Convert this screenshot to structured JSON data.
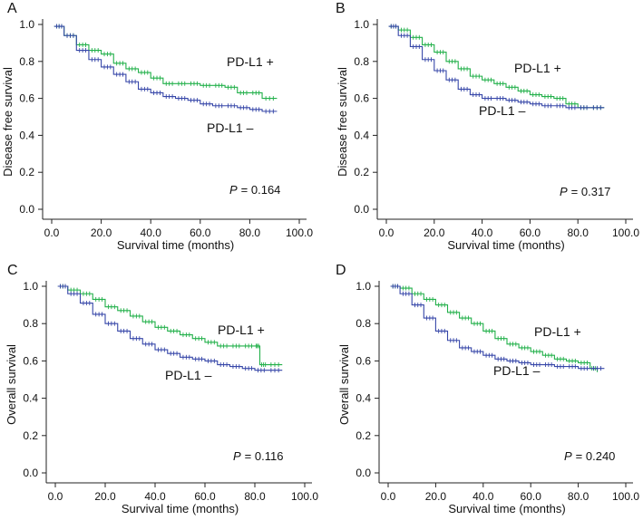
{
  "chart_data": [
    {
      "type": "line",
      "panel_letter": "A",
      "xlabel": "Survival time (months)",
      "ylabel": "Disease free survival",
      "xlim": [
        0,
        100
      ],
      "ylim": [
        0,
        1
      ],
      "xticks": [
        "0.0",
        "20.0",
        "40.0",
        "60.0",
        "80.0",
        "100.0"
      ],
      "yticks": [
        "0.0",
        "0.2",
        "0.4",
        "0.6",
        "0.8",
        "1.0"
      ],
      "p_label": "P",
      "p_value": "= 0.164",
      "series": [
        {
          "name": "PD-L1 +",
          "color": "#22b04a",
          "x": [
            1,
            5,
            10,
            15,
            20,
            25,
            30,
            35,
            40,
            45,
            50,
            55,
            60,
            65,
            70,
            75,
            80,
            85,
            91
          ],
          "y": [
            0.99,
            0.94,
            0.89,
            0.86,
            0.84,
            0.79,
            0.76,
            0.74,
            0.71,
            0.68,
            0.68,
            0.68,
            0.67,
            0.67,
            0.66,
            0.63,
            0.63,
            0.6,
            0.6
          ]
        },
        {
          "name": "PD-L1 –",
          "color": "#3646a8",
          "x": [
            1,
            5,
            10,
            15,
            20,
            25,
            30,
            35,
            40,
            45,
            50,
            55,
            60,
            65,
            70,
            75,
            80,
            85,
            91
          ],
          "y": [
            0.99,
            0.94,
            0.86,
            0.81,
            0.77,
            0.73,
            0.69,
            0.65,
            0.63,
            0.61,
            0.6,
            0.59,
            0.57,
            0.56,
            0.56,
            0.55,
            0.54,
            0.53,
            0.53
          ]
        }
      ]
    },
    {
      "type": "line",
      "panel_letter": "B",
      "xlabel": "Survival time (months)",
      "ylabel": "Disease free survival",
      "xlim": [
        0,
        100
      ],
      "ylim": [
        0,
        1
      ],
      "xticks": [
        "0.0",
        "20.0",
        "40.0",
        "60.0",
        "80.0",
        "100.0"
      ],
      "yticks": [
        "0.0",
        "0.2",
        "0.4",
        "0.6",
        "0.8",
        "1.0"
      ],
      "p_label": "P",
      "p_value": "= 0.317",
      "series": [
        {
          "name": "PD-L1 +",
          "color": "#22b04a",
          "x": [
            1,
            5,
            10,
            15,
            20,
            25,
            30,
            35,
            40,
            45,
            50,
            55,
            60,
            65,
            70,
            75,
            80,
            85,
            91
          ],
          "y": [
            0.99,
            0.97,
            0.93,
            0.89,
            0.85,
            0.8,
            0.76,
            0.72,
            0.7,
            0.68,
            0.66,
            0.64,
            0.62,
            0.61,
            0.6,
            0.57,
            0.55,
            0.55,
            0.55
          ]
        },
        {
          "name": "PD-L1 –",
          "color": "#3646a8",
          "x": [
            1,
            5,
            10,
            15,
            20,
            25,
            30,
            35,
            40,
            45,
            50,
            55,
            60,
            65,
            70,
            75,
            80,
            85,
            91
          ],
          "y": [
            0.99,
            0.94,
            0.88,
            0.81,
            0.75,
            0.7,
            0.65,
            0.62,
            0.6,
            0.6,
            0.59,
            0.58,
            0.57,
            0.56,
            0.56,
            0.55,
            0.55,
            0.55,
            0.55
          ]
        }
      ]
    },
    {
      "type": "line",
      "panel_letter": "C",
      "xlabel": "Survival time (months)",
      "ylabel": "Overall survival",
      "xlim": [
        0,
        100
      ],
      "ylim": [
        0,
        1
      ],
      "xticks": [
        "0.0",
        "20.0",
        "40.0",
        "60.0",
        "80.0",
        "100.0"
      ],
      "yticks": [
        "0.0",
        "0.2",
        "0.4",
        "0.6",
        "0.8",
        "1.0"
      ],
      "p_label": "P",
      "p_value": "= 0.116",
      "series": [
        {
          "name": "PD-L1 +",
          "color": "#22b04a",
          "x": [
            1,
            5,
            10,
            15,
            20,
            25,
            30,
            35,
            40,
            45,
            50,
            55,
            60,
            65,
            70,
            75,
            80,
            82,
            85,
            91
          ],
          "y": [
            1.0,
            0.98,
            0.96,
            0.93,
            0.89,
            0.87,
            0.84,
            0.81,
            0.78,
            0.76,
            0.74,
            0.72,
            0.7,
            0.68,
            0.68,
            0.68,
            0.68,
            0.58,
            0.58,
            0.58
          ]
        },
        {
          "name": "PD-L1 –",
          "color": "#3646a8",
          "x": [
            1,
            5,
            10,
            15,
            20,
            25,
            30,
            35,
            40,
            45,
            50,
            55,
            60,
            65,
            70,
            75,
            80,
            85,
            91
          ],
          "y": [
            1.0,
            0.96,
            0.91,
            0.85,
            0.8,
            0.76,
            0.72,
            0.69,
            0.66,
            0.64,
            0.62,
            0.61,
            0.6,
            0.58,
            0.57,
            0.56,
            0.55,
            0.55,
            0.55
          ]
        }
      ]
    },
    {
      "type": "line",
      "panel_letter": "D",
      "xlabel": "Survival time (months)",
      "ylabel": "Overall survival",
      "xlim": [
        0,
        100
      ],
      "ylim": [
        0,
        1
      ],
      "xticks": [
        "0.0",
        "20.0",
        "40.0",
        "60.0",
        "80.0",
        "100.0"
      ],
      "yticks": [
        "0.0",
        "0.2",
        "0.4",
        "0.6",
        "0.8",
        "1.0"
      ],
      "p_label": "P",
      "p_value": "= 0.240",
      "series": [
        {
          "name": "PD-L1 +",
          "color": "#22b04a",
          "x": [
            1,
            5,
            10,
            15,
            20,
            25,
            30,
            35,
            40,
            45,
            50,
            55,
            60,
            65,
            70,
            75,
            80,
            85,
            88
          ],
          "y": [
            1.0,
            0.99,
            0.96,
            0.93,
            0.9,
            0.86,
            0.83,
            0.8,
            0.76,
            0.72,
            0.69,
            0.67,
            0.65,
            0.63,
            0.61,
            0.6,
            0.59,
            0.56,
            0.54
          ]
        },
        {
          "name": "PD-L1 –",
          "color": "#3646a8",
          "x": [
            1,
            5,
            10,
            15,
            20,
            25,
            30,
            35,
            40,
            45,
            50,
            55,
            60,
            65,
            70,
            75,
            80,
            85,
            91
          ],
          "y": [
            1.0,
            0.96,
            0.9,
            0.83,
            0.76,
            0.71,
            0.67,
            0.65,
            0.63,
            0.61,
            0.6,
            0.59,
            0.58,
            0.58,
            0.57,
            0.57,
            0.56,
            0.56,
            0.56
          ]
        }
      ]
    }
  ]
}
